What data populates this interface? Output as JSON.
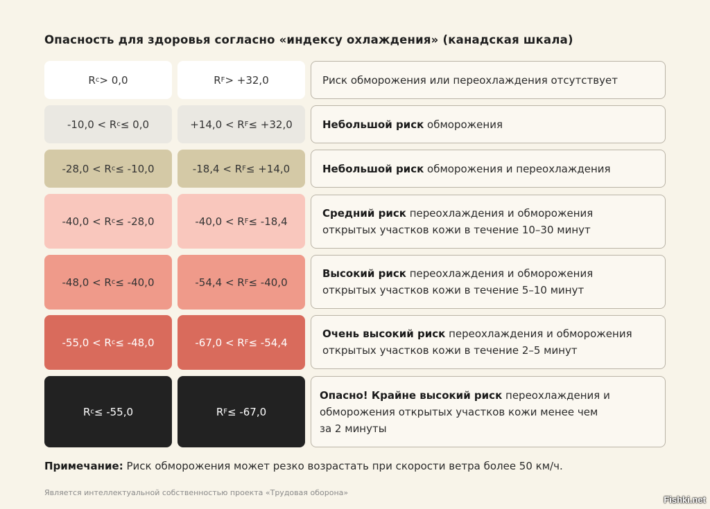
{
  "title": "Опасность для здоровья согласно «индексу охлаждения» (канадская шкала)",
  "rows": [
    {
      "c": {
        "pre": "R",
        "sub": "c",
        "post": " > 0,0"
      },
      "f": {
        "pre": "R",
        "sub": "F",
        "post": " > +32,0"
      },
      "bold": "",
      "rest": "Риск обморожения или переохлаждения отсутствует",
      "color": "#ffffff",
      "text_color": "#333333"
    },
    {
      "c": {
        "pre": "-10,0 < R",
        "sub": "c",
        "post": " ≤ 0,0"
      },
      "f": {
        "pre": "+14,0 < R",
        "sub": "F",
        "post": " ≤ +32,0"
      },
      "bold": "Небольшой риск",
      "rest": " обморожения",
      "color": "#eae8e2",
      "text_color": "#333333"
    },
    {
      "c": {
        "pre": "-28,0 < R",
        "sub": "c",
        "post": " ≤ -10,0"
      },
      "f": {
        "pre": "-18,4 < R",
        "sub": "F",
        "post": " ≤ +14,0"
      },
      "bold": "Небольшой риск",
      "rest": " обморожения и переохлаждения",
      "color": "#d4c9a6",
      "text_color": "#333333"
    },
    {
      "c": {
        "pre": "-40,0 < R",
        "sub": "c",
        "post": " ≤ -28,0"
      },
      "f": {
        "pre": "-40,0 < R",
        "sub": "F",
        "post": " ≤ -18,4"
      },
      "bold": "Средний риск",
      "rest": " переохлаждения и обморожения открытых участков кожи в течение 10–30 минут",
      "color": "#f9c7bd",
      "text_color": "#333333"
    },
    {
      "c": {
        "pre": "-48,0 < R",
        "sub": "c",
        "post": " ≤ -40,0"
      },
      "f": {
        "pre": "-54,4 < R",
        "sub": "F",
        "post": " ≤ -40,0"
      },
      "bold": "Высокий риск",
      "rest": " переохлаждения и обморожения открытых участков кожи в течение 5–10 минут",
      "color": "#ef9a8a",
      "text_color": "#333333"
    },
    {
      "c": {
        "pre": "-55,0 < R",
        "sub": "c",
        "post": " ≤ -48,0"
      },
      "f": {
        "pre": "-67,0 < R",
        "sub": "F",
        "post": " ≤ -54,4"
      },
      "bold": "Очень высокий риск",
      "rest": " переохлаждения и обморожения открытых участков кожи в течение 2–5 минут",
      "color": "#d96b5c",
      "text_color": "#ffffff"
    },
    {
      "c": {
        "pre": "R",
        "sub": "c",
        "post": " ≤ -55,0"
      },
      "f": {
        "pre": "R",
        "sub": "F",
        "post": " ≤ -67,0"
      },
      "bold": "Опасно! Крайне высокий риск",
      "rest": " переохлаждения и обморожения открытых участков кожи менее чем за 2 минуты",
      "color": "#222222",
      "text_color": "#ffffff"
    }
  ],
  "note": {
    "label": "Примечание:",
    "text": " Риск обморожения может резко возрастать при скорости ветра более 50 км/ч."
  },
  "footer": "Является интеллектуальной собственностью проекта «Трудовая оборона»",
  "brand": "Fishki.net"
}
